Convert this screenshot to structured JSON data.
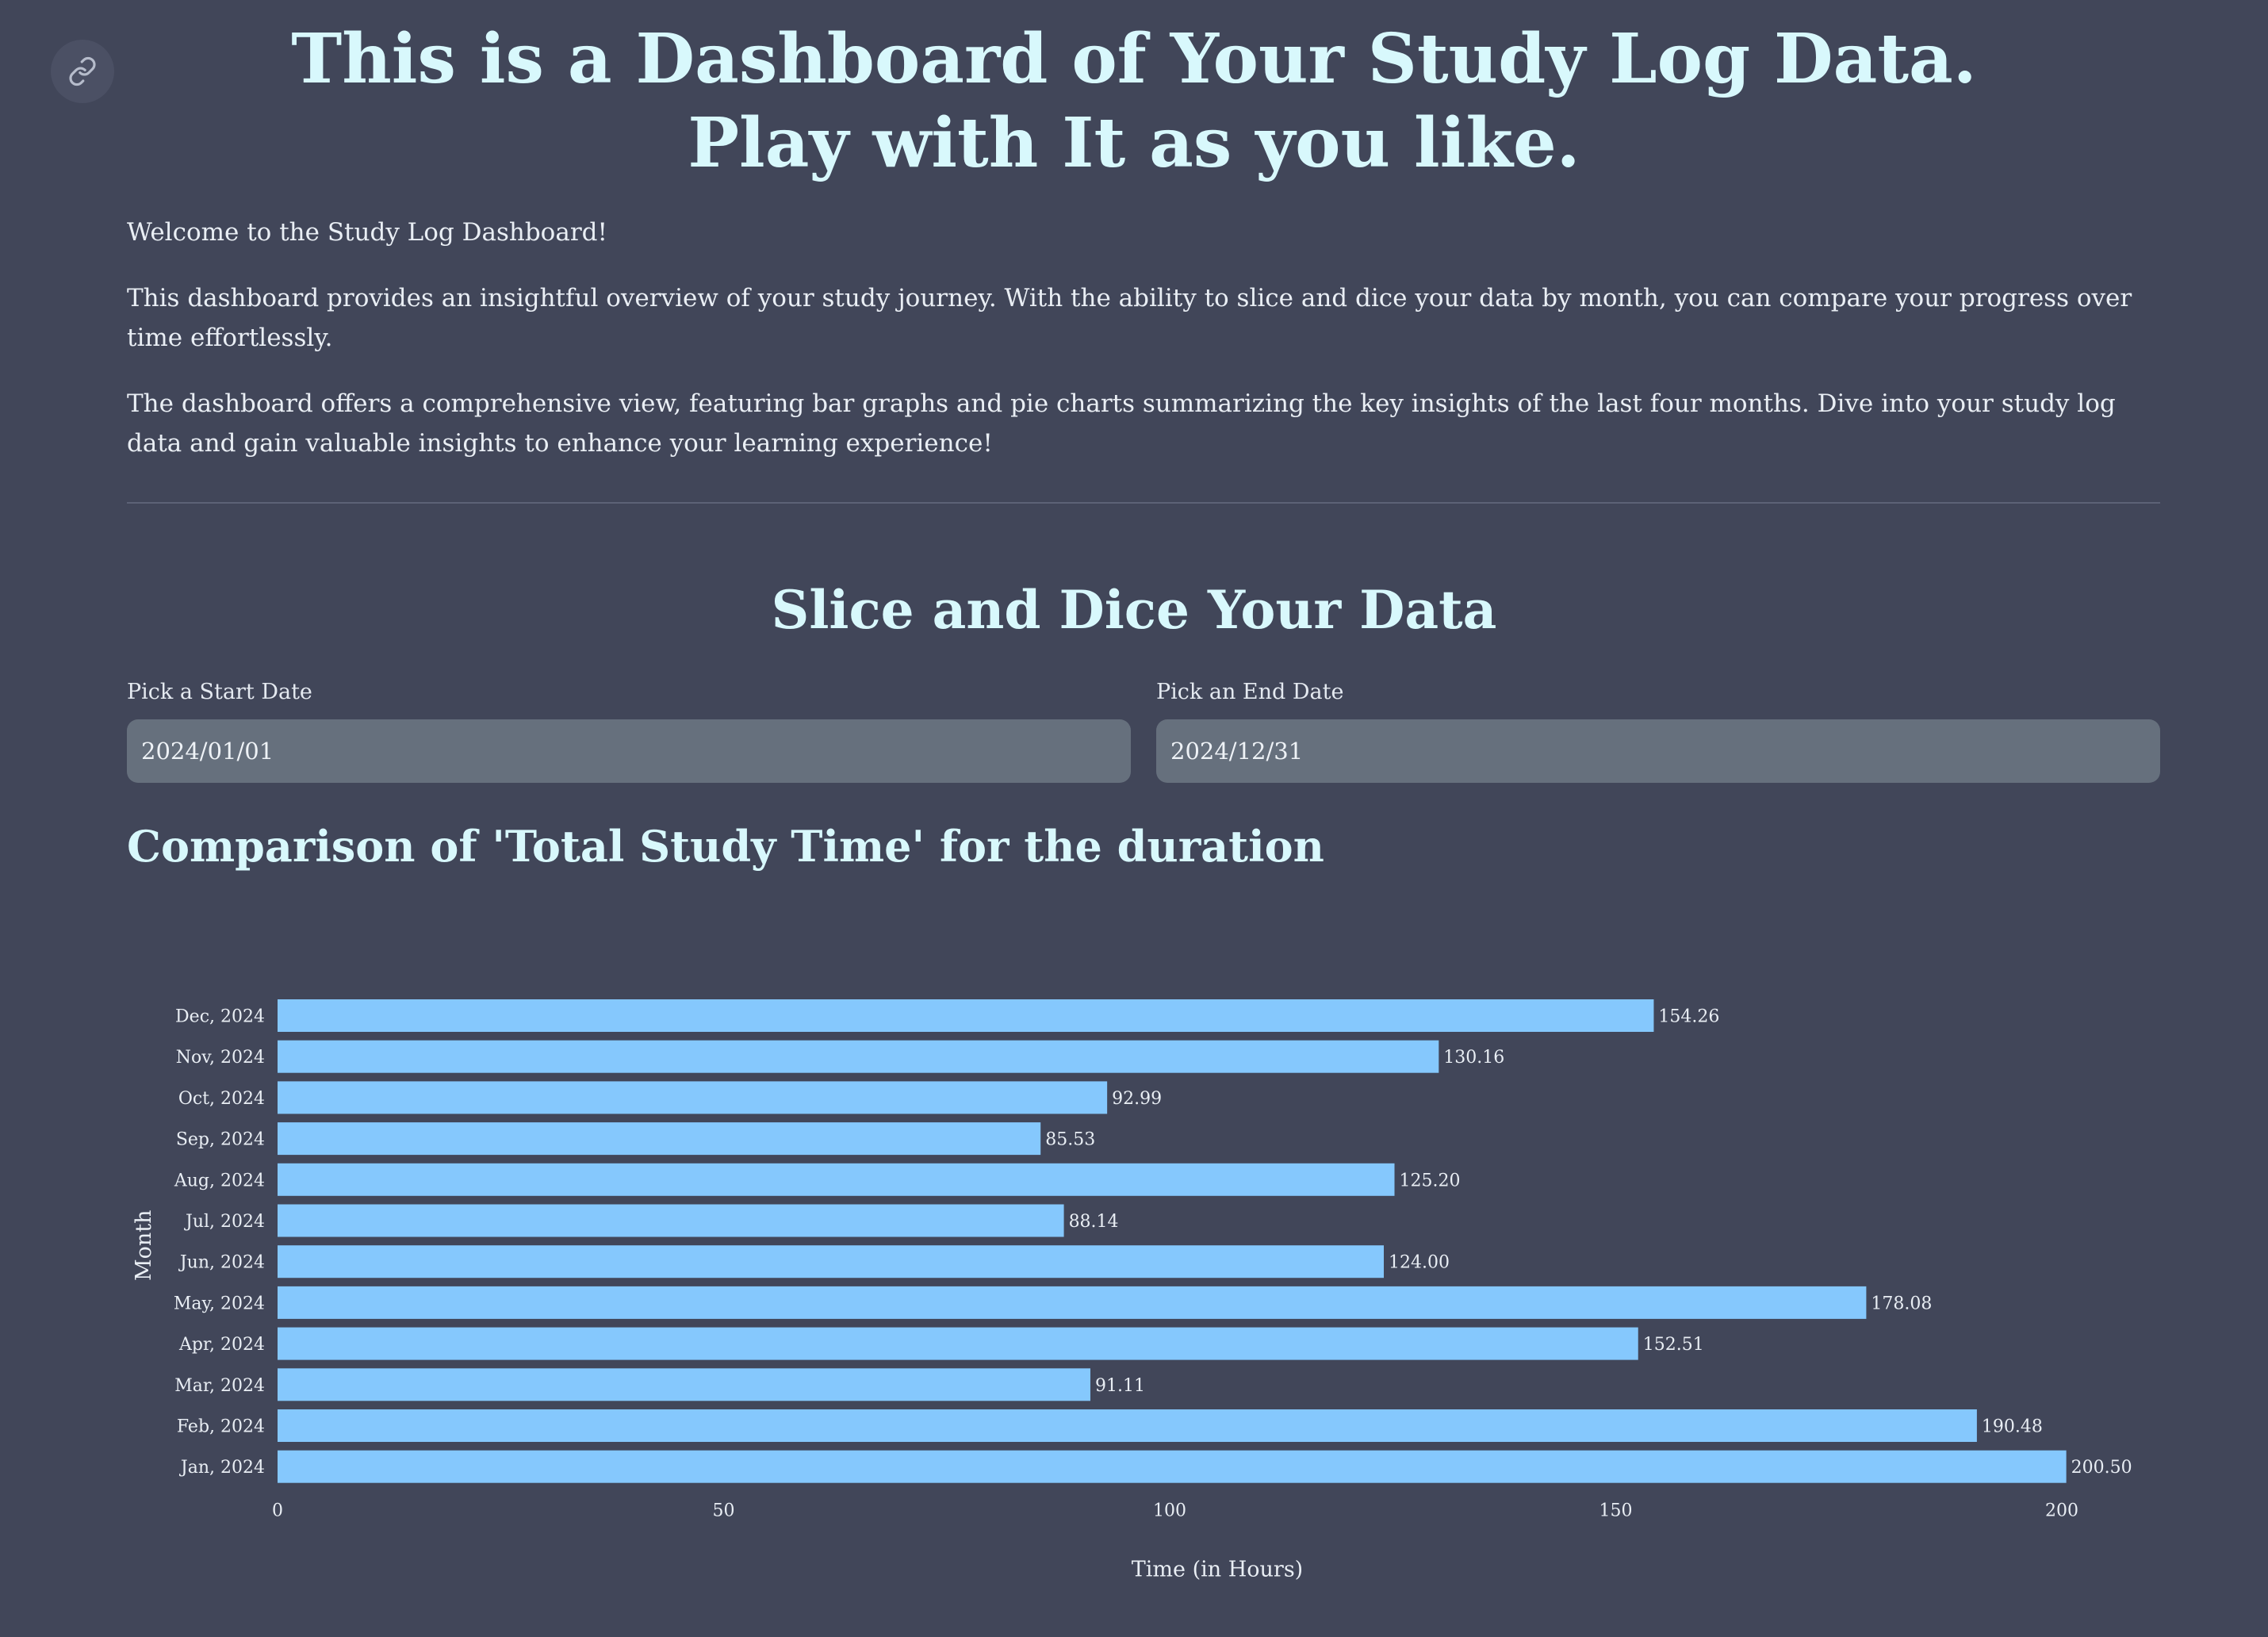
{
  "header": {
    "title_line1": "This is a Dashboard of Your Study Log Data.",
    "title_line2": "Play with It as you like."
  },
  "intro": {
    "welcome": "Welcome to the Study Log Dashboard!",
    "paragraph1": "This dashboard provides an insightful overview of your study journey. With the ability to slice and dice your data by month, you can compare your progress over time effortlessly.",
    "paragraph2": "The dashboard offers a comprehensive view, featuring bar graphs and pie charts summarizing the key insights of the last four months. Dive into your study log data and gain valuable insights to enhance your learning experience!"
  },
  "filters": {
    "section_title": "Slice and Dice Your Data",
    "start_label": "Pick a Start Date",
    "start_value": "2024/01/01",
    "end_label": "Pick an End Date",
    "end_value": "2024/12/31"
  },
  "chart_section": {
    "title": "Comparison of 'Total Study Time' for the duration"
  },
  "colors": {
    "background": "#414659",
    "heading": "#d8f8fc",
    "bar": "#85c8fd"
  },
  "chart_data": {
    "type": "bar",
    "orientation": "horizontal",
    "categories": [
      "Jan, 2024",
      "Feb, 2024",
      "Mar, 2024",
      "Apr, 2024",
      "May, 2024",
      "Jun, 2024",
      "Jul, 2024",
      "Aug, 2024",
      "Sep, 2024",
      "Oct, 2024",
      "Nov, 2024",
      "Dec, 2024"
    ],
    "values": [
      200.5,
      190.48,
      91.11,
      152.51,
      178.08,
      124.0,
      88.14,
      125.2,
      85.53,
      92.99,
      130.16,
      154.26
    ],
    "data_labels": [
      "200.50",
      "190.48",
      "91.11",
      "152.51",
      "178.08",
      "124.00",
      "88.14",
      "125.20",
      "85.53",
      "92.99",
      "130.16",
      "154.26"
    ],
    "xlabel": "Time (in Hours)",
    "ylabel": "Month",
    "xticks": [
      0,
      50,
      100,
      150,
      200
    ],
    "xlim": [
      0,
      210
    ],
    "grid": false
  }
}
